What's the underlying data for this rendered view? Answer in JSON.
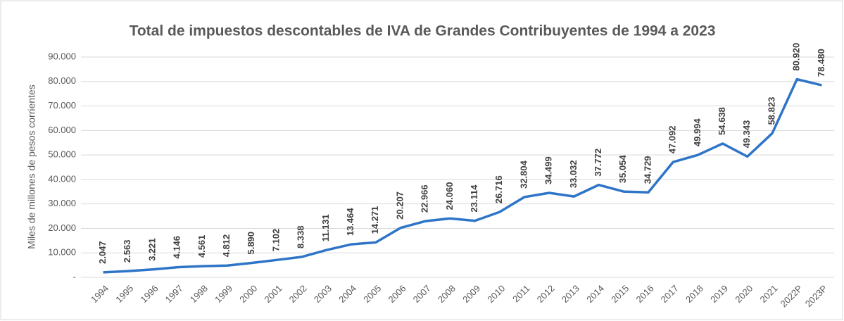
{
  "chart_data": {
    "type": "line",
    "title": "Total de impuestos descontables de IVA de Grandes Contribuyentes de 1994 a 2023",
    "y_label": "Miles de millones de pesos corrientes",
    "categories": [
      "1994",
      "1995",
      "1996",
      "1997",
      "1998",
      "1999",
      "2000",
      "2001",
      "2002",
      "2003",
      "2004",
      "2005",
      "2006",
      "2007",
      "2008",
      "2009",
      "2010",
      "2011",
      "2012",
      "2013",
      "2014",
      "2015",
      "2016",
      "2017",
      "2018",
      "2019",
      "2020",
      "2021",
      "2022P",
      "2023P"
    ],
    "series": [
      {
        "name": "Total de impuestos descontables de IVA",
        "color": "#2e75c8",
        "values": [
          2047,
          2563,
          3221,
          4146,
          4561,
          4812,
          5890,
          7102,
          8338,
          11131,
          13464,
          14271,
          20207,
          22966,
          24060,
          23114,
          26716,
          32804,
          34499,
          33032,
          37772,
          35054,
          34729,
          47092,
          49994,
          54638,
          49343,
          58823,
          80920,
          78480
        ],
        "value_labels": [
          "2.047",
          "2.563",
          "3.221",
          "4.146",
          "4.561",
          "4.812",
          "5.890",
          "7.102",
          "8.338",
          "11.131",
          "13.464",
          "14.271",
          "20.207",
          "22.966",
          "24.060",
          "23.114",
          "26.716",
          "32.804",
          "34.499",
          "33.032",
          "37.772",
          "35.054",
          "34.729",
          "47.092",
          "49.994",
          "54.638",
          "49.343",
          "58.823",
          "80.920",
          "78.480"
        ]
      }
    ],
    "ylim": [
      0,
      90000
    ],
    "yticks": [
      {
        "value": 0,
        "label": "-"
      },
      {
        "value": 10000,
        "label": "10.000"
      },
      {
        "value": 20000,
        "label": "20.000"
      },
      {
        "value": 30000,
        "label": "30.000"
      },
      {
        "value": 40000,
        "label": "40.000"
      },
      {
        "value": 50000,
        "label": "50.000"
      },
      {
        "value": 60000,
        "label": "60.000"
      },
      {
        "value": 70000,
        "label": "70.000"
      },
      {
        "value": 80000,
        "label": "80.000"
      },
      {
        "value": 90000,
        "label": "90.000"
      }
    ],
    "grid": true
  }
}
